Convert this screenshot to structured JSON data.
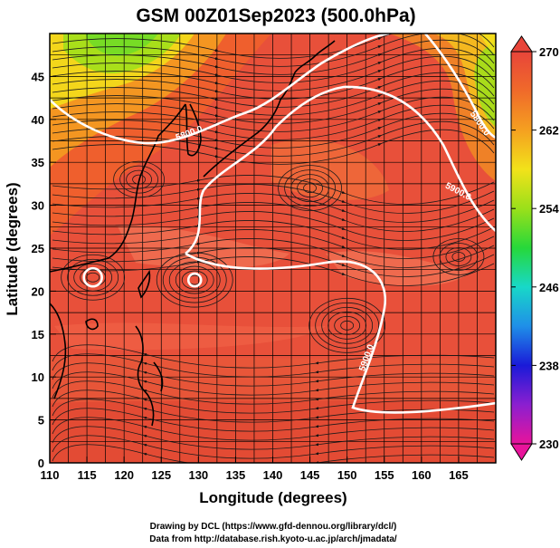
{
  "title": "GSM 00Z01Sep2023 (500.0hPa)",
  "x_axis": {
    "label": "Longitude (degrees)",
    "range": [
      110,
      170
    ],
    "ticks": [
      "110",
      "115",
      "120",
      "125",
      "130",
      "135",
      "140",
      "145",
      "150",
      "155",
      "160",
      "165"
    ]
  },
  "y_axis": {
    "label": "Latitude  (degrees)",
    "range": [
      0,
      50
    ],
    "ticks": [
      "0",
      "5",
      "10",
      "15",
      "20",
      "25",
      "30",
      "35",
      "40",
      "45"
    ]
  },
  "colorbar": {
    "min": 230,
    "max": 270,
    "ticks": [
      "230",
      "238",
      "246",
      "254",
      "262",
      "270"
    ],
    "colors": [
      "#e8149b",
      "#8b1fd0",
      "#1a1ad8",
      "#1f8fe8",
      "#18d8c8",
      "#26d83a",
      "#9be01a",
      "#f2e21a",
      "#f5a020",
      "#f06a2a",
      "#e8453a"
    ]
  },
  "contours": [
    {
      "label": "5900.0"
    },
    {
      "label": "5900.0"
    },
    {
      "label": "5800.0"
    },
    {
      "label": "5800.0"
    }
  ],
  "map_features": {
    "typhoon_centers": [
      {
        "lon": 115.8,
        "lat": 21.6
      },
      {
        "lon": 129.5,
        "lat": 21.3
      }
    ]
  },
  "credits": {
    "line1": "Drawing by DCL (https://www.gfd-dennou.org/library/dcl/)",
    "line2": "Data from http://database.rish.kyoto-u.ac.jp/arch/jmadata/"
  }
}
